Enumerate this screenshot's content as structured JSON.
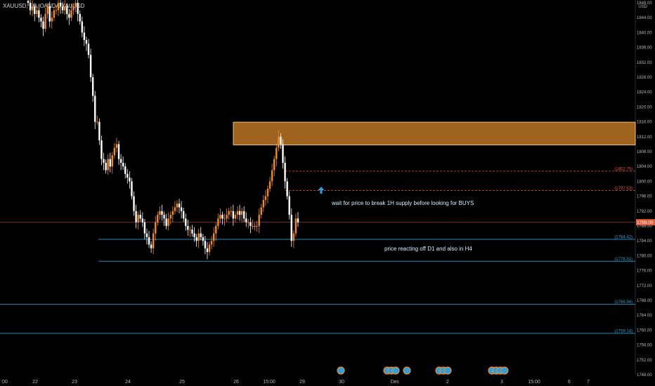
{
  "chart_data": {
    "type": "candlestick",
    "symbol": "XAUUSD, 1H, OANDA:XAUUSD",
    "currency": "USD",
    "y_ticks": [
      1848.0,
      1844.0,
      1840.0,
      1836.0,
      1832.0,
      1828.0,
      1824.0,
      1820.0,
      1816.0,
      1812.0,
      1808.0,
      1804.0,
      1800.0,
      1796.0,
      1792.0,
      1788.0,
      1784.0,
      1780.0,
      1776.0,
      1772.0,
      1768.0,
      1764.0,
      1760.0,
      1756.0,
      1752.0,
      1748.0
    ],
    "ylim": [
      1748,
      1848
    ],
    "x_ticks": [
      ":00",
      "22",
      "23",
      "24",
      "25",
      "26",
      "15:00",
      "29",
      "30",
      "Dec",
      "2",
      "3",
      "15:00",
      "6",
      "7"
    ],
    "current_price": {
      "value": 1789.0,
      "label": "1789.00",
      "color": "#e25b3a"
    },
    "supply_zone": {
      "low": 1809.8,
      "high": 1815.9,
      "color": "#d9892b",
      "note": "1H supply"
    },
    "levels": [
      {
        "value": 1802.75,
        "label": "(1802.75)",
        "style": "dashed",
        "color": "#c0392b"
      },
      {
        "value": 1797.53,
        "label": "(1797.53)",
        "style": "dashed",
        "color": "#c0392b"
      },
      {
        "value": 1784.42,
        "label": "(1784.42)",
        "style": "solid",
        "color": "#2a88b8"
      },
      {
        "value": 1778.51,
        "label": "(1778.51)",
        "style": "solid",
        "color": "#2a88b8"
      },
      {
        "value": 1766.94,
        "label": "(1766.94)",
        "style": "solid",
        "color": "#2a88b8"
      },
      {
        "value": 1759.14,
        "label": "(1759.14)",
        "style": "solid",
        "color": "#2a88b8"
      }
    ],
    "annotations": [
      {
        "text": "wait for price to break 1H supply before looking for BUYS"
      },
      {
        "text": "price reacting off D1 and also in H4"
      }
    ],
    "close_series": [
      1848,
      1846,
      1847,
      1845,
      1846,
      1844,
      1843,
      1841,
      1845,
      1847,
      1843,
      1844,
      1846,
      1846,
      1848,
      1847,
      1846,
      1847,
      1845,
      1844,
      1846,
      1847,
      1848,
      1845,
      1843,
      1840,
      1838,
      1837,
      1834,
      1828,
      1823,
      1816,
      1816,
      1811,
      1806,
      1805,
      1803,
      1806,
      1804,
      1807,
      1809,
      1810,
      1806,
      1805,
      1804,
      1802,
      1801,
      1800,
      1796,
      1792,
      1789,
      1791,
      1790,
      1789,
      1786,
      1785,
      1783,
      1782,
      1786,
      1789,
      1791,
      1792,
      1791,
      1790,
      1788,
      1790,
      1791,
      1792,
      1793,
      1794,
      1793,
      1792,
      1790,
      1788,
      1787,
      1787,
      1786,
      1785,
      1784,
      1786,
      1785,
      1784,
      1782,
      1781,
      1783,
      1784,
      1786,
      1788,
      1790,
      1791,
      1790,
      1790,
      1791,
      1792,
      1792,
      1790,
      1791,
      1792,
      1791,
      1792,
      1790,
      1789,
      1789,
      1788,
      1788,
      1788,
      1788,
      1791,
      1793,
      1795,
      1796,
      1798,
      1800,
      1803,
      1806,
      1809,
      1812,
      1810,
      1805,
      1800,
      1796,
      1791,
      1784,
      1786,
      1790,
      1789
    ]
  },
  "calendar_markers": 12
}
